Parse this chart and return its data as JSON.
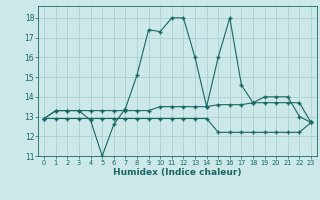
{
  "xlabel": "Humidex (Indice chaleur)",
  "bg_color": "#cce8e8",
  "grid_color": "#b0d4d4",
  "line_color": "#1a6666",
  "xlim": [
    -0.5,
    23.5
  ],
  "ylim": [
    11,
    18.6
  ],
  "yticks": [
    11,
    12,
    13,
    14,
    15,
    16,
    17,
    18
  ],
  "xticks": [
    0,
    1,
    2,
    3,
    4,
    5,
    6,
    7,
    8,
    9,
    10,
    11,
    12,
    13,
    14,
    15,
    16,
    17,
    18,
    19,
    20,
    21,
    22,
    23
  ],
  "line1_x": [
    0,
    1,
    2,
    3,
    4,
    5,
    6,
    7,
    8,
    9,
    10,
    11,
    12,
    13,
    14,
    15,
    16,
    17,
    18,
    19,
    20,
    21,
    22,
    23
  ],
  "line1_y": [
    12.9,
    13.3,
    13.3,
    13.3,
    12.8,
    11.0,
    12.6,
    13.4,
    15.1,
    17.4,
    17.3,
    18.0,
    18.0,
    16.0,
    13.5,
    16.0,
    18.0,
    14.6,
    13.7,
    14.0,
    14.0,
    14.0,
    13.0,
    12.7
  ],
  "line2_x": [
    0,
    1,
    2,
    3,
    4,
    5,
    6,
    7,
    8,
    9,
    10,
    11,
    12,
    13,
    14,
    15,
    16,
    17,
    18,
    19,
    20,
    21,
    22,
    23
  ],
  "line2_y": [
    12.9,
    13.3,
    13.3,
    13.3,
    13.3,
    13.3,
    13.3,
    13.3,
    13.3,
    13.3,
    13.5,
    13.5,
    13.5,
    13.5,
    13.5,
    13.6,
    13.6,
    13.6,
    13.7,
    13.7,
    13.7,
    13.7,
    13.7,
    12.7
  ],
  "line3_x": [
    0,
    1,
    2,
    3,
    4,
    5,
    6,
    7,
    8,
    9,
    10,
    11,
    12,
    13,
    14,
    15,
    16,
    17,
    18,
    19,
    20,
    21,
    22,
    23
  ],
  "line3_y": [
    12.9,
    12.9,
    12.9,
    12.9,
    12.9,
    12.9,
    12.9,
    12.9,
    12.9,
    12.9,
    12.9,
    12.9,
    12.9,
    12.9,
    12.9,
    12.2,
    12.2,
    12.2,
    12.2,
    12.2,
    12.2,
    12.2,
    12.2,
    12.7
  ]
}
